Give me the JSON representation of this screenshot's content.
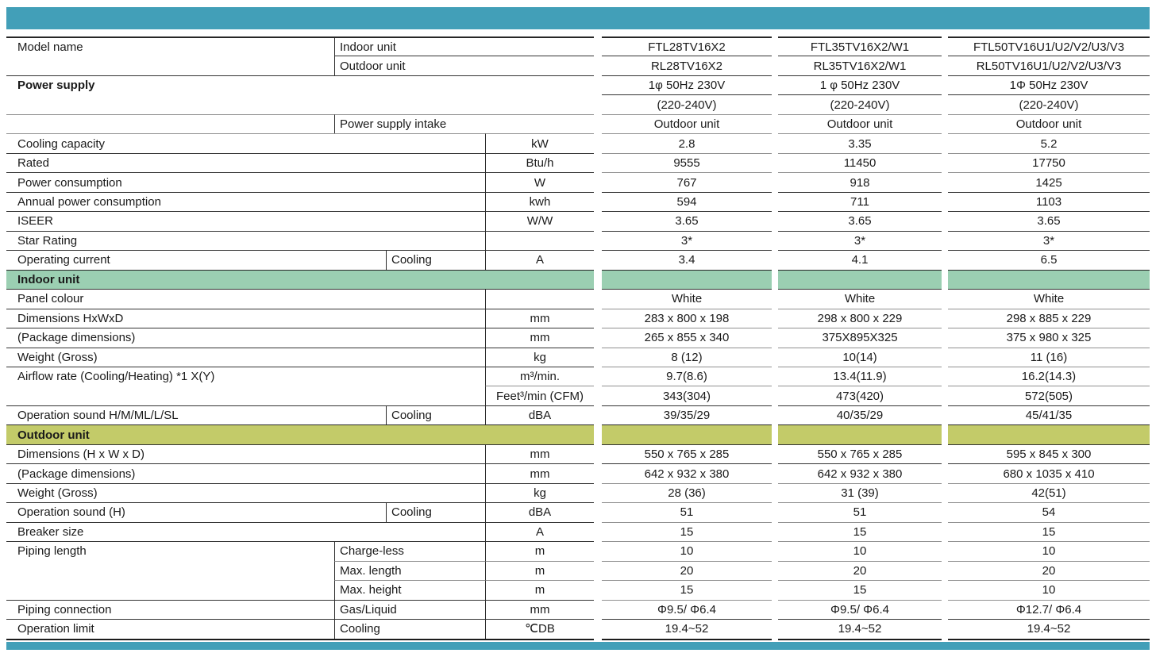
{
  "palette": {
    "teal": "#429FB8",
    "green": "#9BCFB2",
    "olive": "#C3CB69",
    "line_dark": "#333333",
    "line_gray": "#909090"
  },
  "table": {
    "product_columns": 3,
    "rows": [
      {
        "kind": "k1",
        "label": "Model name",
        "sub": "Indoor unit",
        "values": [
          "FTL28TV16X2",
          "FTL35TV16X2/W1",
          "FTL50TV16U1/U2/V2/U3/V3"
        ],
        "b": {
          "l": "D",
          "s": "D",
          "v": "D"
        }
      },
      {
        "kind": "k1",
        "label": "",
        "sub": "Outdoor unit",
        "values": [
          "RL28TV16X2",
          "RL35TV16X2/W1",
          "RL50TV16U1/U2/V2/U3/V3"
        ],
        "b": {
          "l": "n",
          "s": "d",
          "v": "d"
        }
      },
      {
        "kind": "k2",
        "label": "Power supply",
        "bold": true,
        "values": [
          "1φ 50Hz 230V",
          "1 φ 50Hz 230V",
          "1Φ 50Hz 230V"
        ],
        "b": {
          "l": "d",
          "v": "d"
        }
      },
      {
        "kind": "k2",
        "label": "",
        "values": [
          "(220-240V)",
          "(220-240V)",
          "(220-240V)"
        ],
        "b": {
          "l": "n",
          "v": "d"
        }
      },
      {
        "kind": "k1",
        "label": "",
        "sub": "Power supply intake",
        "values": [
          "Outdoor unit",
          "Outdoor unit",
          "Outdoor unit"
        ],
        "b": {
          "l": "g",
          "s": "g",
          "v": "g"
        }
      },
      {
        "kind": "k3",
        "label": "Cooling capacity",
        "unit": "kW",
        "values": [
          "2.8",
          "3.35",
          "5.2"
        ],
        "b": {
          "l": "g",
          "u": "g",
          "v": "g"
        }
      },
      {
        "kind": "k3",
        "label": "Rated",
        "unit": "Btu/h",
        "values": [
          "9555",
          "11450",
          "17750"
        ],
        "b": {
          "l": "d",
          "u": "d",
          "v": "g"
        }
      },
      {
        "kind": "k3",
        "label": "Power consumption",
        "unit": "W",
        "values": [
          "767",
          "918",
          "1425"
        ],
        "b": {
          "l": "d",
          "u": "d",
          "v": "g"
        }
      },
      {
        "kind": "k3",
        "label": "Annual power consumption",
        "unit": "kwh",
        "values": [
          "594",
          "711",
          "1103"
        ],
        "b": {
          "l": "d",
          "u": "d",
          "v": "d"
        }
      },
      {
        "kind": "k3",
        "label": "ISEER",
        "unit": "W/W",
        "values": [
          "3.65",
          "3.65",
          "3.65"
        ],
        "b": {
          "l": "d",
          "u": "d",
          "v": "d"
        }
      },
      {
        "kind": "k3",
        "label": "Star Rating",
        "unit": "",
        "values": [
          "3*",
          "3*",
          "3*"
        ],
        "b": {
          "l": "d",
          "u": "d",
          "v": "d"
        }
      },
      {
        "kind": "k4",
        "label": "Operating current",
        "sub": "Cooling",
        "unit": "A",
        "values": [
          "3.4",
          "4.1",
          "6.5"
        ],
        "b": {
          "l": "d",
          "s": "d",
          "u": "d",
          "v": "d"
        }
      },
      {
        "kind": "bar",
        "name": "section-bar-indoor-unit",
        "label": "Indoor unit",
        "color": "green"
      },
      {
        "kind": "k3",
        "label": "Panel colour",
        "unit": "",
        "values": [
          "White",
          "White",
          "White"
        ],
        "b": {
          "l": "d",
          "u": "d",
          "v": "d"
        }
      },
      {
        "kind": "k3",
        "label": "Dimensions HxWxD",
        "unit": "mm",
        "values": [
          "283 x 800 x 198",
          "298 x 800 x 229",
          "298 x 885 x 229"
        ],
        "b": {
          "l": "d",
          "u": "d",
          "v": "g"
        }
      },
      {
        "kind": "k3",
        "label": "(Package dimensions)",
        "unit": "mm",
        "values": [
          "265 x 855 x 340",
          "375X895X325",
          "375 x 980 x 325"
        ],
        "b": {
          "l": "d",
          "u": "d",
          "v": "g"
        }
      },
      {
        "kind": "k3",
        "label": "Weight (Gross)",
        "unit": "kg",
        "values": [
          "8 (12)",
          "10(14)",
          "11 (16)"
        ],
        "b": {
          "l": "d",
          "u": "d",
          "v": "g"
        }
      },
      {
        "kind": "k3",
        "label": "Airflow rate (Cooling/Heating) *1 X(Y)",
        "unit": "m³/min.",
        "values": [
          "9.7(8.6)",
          "13.4(11.9)",
          "16.2(14.3)"
        ],
        "b": {
          "l": "d",
          "u": "d",
          "v": "g"
        }
      },
      {
        "kind": "k3",
        "label": "",
        "unit": "Feet³/min (CFM)",
        "values": [
          "343(304)",
          "473(420)",
          "572(505)"
        ],
        "b": {
          "l": "n",
          "u": "g",
          "v": "g"
        }
      },
      {
        "kind": "k4",
        "label": "Operation sound H/M/ML/L/SL",
        "sub": "Cooling",
        "unit": "dBA",
        "values": [
          "39/35/29",
          "40/35/29",
          "45/41/35"
        ],
        "b": {
          "l": "d",
          "s": "d",
          "u": "d",
          "v": "d"
        }
      },
      {
        "kind": "bar",
        "name": "section-bar-outdoor-unit",
        "label": "Outdoor unit",
        "color": "olive"
      },
      {
        "kind": "k3",
        "label": "Dimensions (H x W x D)",
        "unit": "mm",
        "values": [
          "550 x 765 x 285",
          "550 x 765 x 285",
          "595 x 845 x 300"
        ],
        "b": {
          "l": "d",
          "u": "d",
          "v": "d"
        }
      },
      {
        "kind": "k3",
        "label": "(Package dimensions)",
        "unit": "mm",
        "values": [
          "642 x 932 x 380",
          "642 x 932 x 380",
          "680 x 1035 x 410"
        ],
        "b": {
          "l": "d",
          "u": "d",
          "v": "d"
        }
      },
      {
        "kind": "k3",
        "label": "Weight (Gross)",
        "unit": "kg",
        "values": [
          "28 (36)",
          "31 (39)",
          "42(51)"
        ],
        "b": {
          "l": "d",
          "u": "d",
          "v": "g"
        }
      },
      {
        "kind": "k4",
        "label": "Operation sound (H)",
        "sub": "Cooling",
        "unit": "dBA",
        "values": [
          "51",
          "51",
          "54"
        ],
        "b": {
          "l": "d",
          "s": "d",
          "u": "d",
          "v": "g"
        }
      },
      {
        "kind": "k3",
        "label": "Breaker size",
        "unit": "A",
        "values": [
          "15",
          "15",
          "15"
        ],
        "b": {
          "l": "d",
          "u": "d",
          "v": "g"
        }
      },
      {
        "kind": "k5",
        "label": "Piping length",
        "sub": "Charge-less",
        "unit": "m",
        "values": [
          "10",
          "10",
          "10"
        ],
        "b": {
          "l": "d",
          "s": "d",
          "u": "d",
          "v": "g"
        }
      },
      {
        "kind": "k5",
        "label": "",
        "sub": "Max. length",
        "unit": "m",
        "values": [
          "20",
          "20",
          "20"
        ],
        "b": {
          "l": "n",
          "s": "g",
          "u": "g",
          "v": "g"
        }
      },
      {
        "kind": "k5",
        "label": "",
        "sub": "Max. height",
        "unit": "m",
        "values": [
          "15",
          "15",
          "10"
        ],
        "b": {
          "l": "n",
          "s": "g",
          "u": "g",
          "v": "g"
        }
      },
      {
        "kind": "k5",
        "label": "Piping connection",
        "sub": "Gas/Liquid",
        "unit": "mm",
        "values": [
          "Φ9.5/ Φ6.4",
          "Φ9.5/ Φ6.4",
          "Φ12.7/ Φ6.4"
        ],
        "b": {
          "l": "d",
          "s": "d",
          "u": "d",
          "v": "g"
        }
      },
      {
        "kind": "k5",
        "label": "Operation limit",
        "sub": "Cooling",
        "unit": "℃DB",
        "values": [
          "19.4~52",
          "19.4~52",
          "19.4~52"
        ],
        "b": {
          "l": "d",
          "s": "d",
          "u": "d",
          "v": "d"
        }
      }
    ]
  }
}
